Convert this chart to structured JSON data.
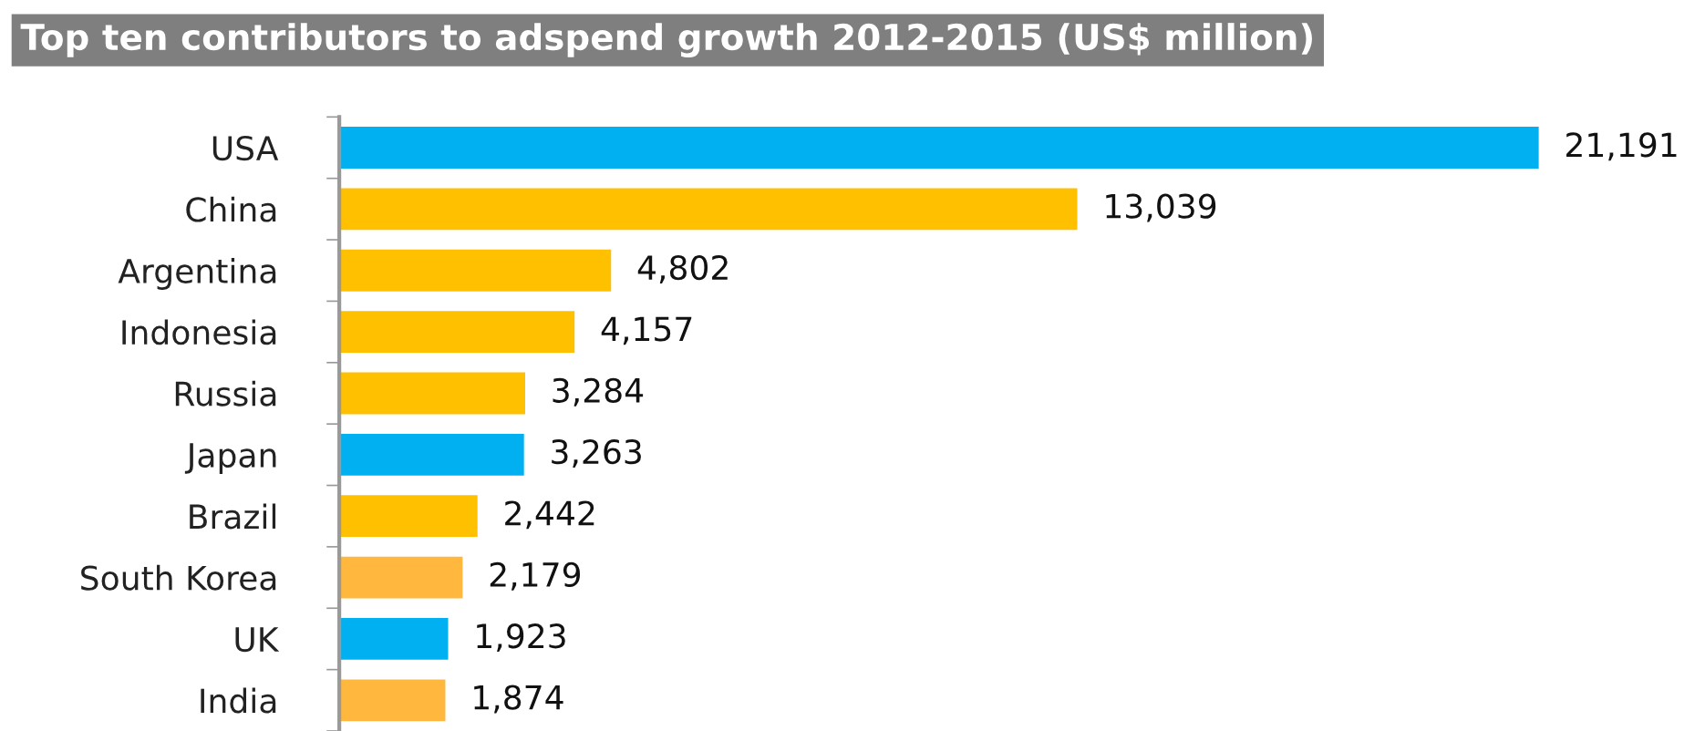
{
  "chart_data": {
    "type": "bar",
    "orientation": "horizontal",
    "title": "Top ten contributors to adspend growth 2012-2015 (US$ million)",
    "categories": [
      "USA",
      "China",
      "Argentina",
      "Indonesia",
      "Russia",
      "Japan",
      "Brazil",
      "South Korea",
      "UK",
      "India"
    ],
    "values": [
      21191,
      13039,
      4802,
      4157,
      3284,
      3263,
      2442,
      2179,
      1923,
      1874
    ],
    "colors": [
      "#00b0f0",
      "#ffc000",
      "#ffc000",
      "#ffc000",
      "#ffc000",
      "#00b0f0",
      "#ffc000",
      "#ffb83d",
      "#00b0f0",
      "#ffb83d"
    ],
    "value_labels": [
      "21,191",
      "13,039",
      "4,802",
      "4,157",
      "3,284",
      "3,263",
      "2,442",
      "2,179",
      "1,923",
      "1,874"
    ],
    "grid": false,
    "legend": false
  }
}
